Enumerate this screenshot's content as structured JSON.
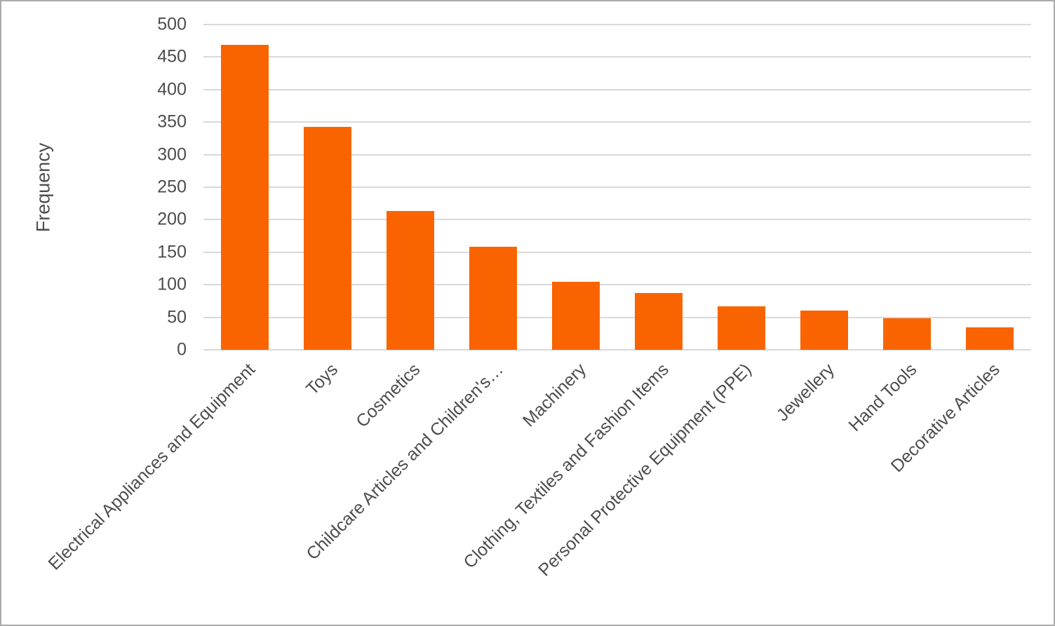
{
  "figure": {
    "background_color": "#FFFFFF",
    "border_color": "#ABABAB"
  },
  "chart_data": {
    "type": "bar",
    "title": "",
    "xlabel": "",
    "ylabel": "Frequency",
    "categories": [
      "Electrical Appliances and Equipment",
      "Toys",
      "Cosmetics",
      "Childcare Articles and Children's…",
      "Machinery",
      "Clothing, Textiles and Fashion Items",
      "Personal Protective Equipment (PPE)",
      "Jewellery",
      "Hand Tools",
      "Decorative Articles"
    ],
    "values": [
      469,
      343,
      213,
      158,
      105,
      87,
      67,
      60,
      48,
      34
    ],
    "ylim": [
      0,
      500
    ],
    "ytick_step": 50,
    "grid": "horizontal",
    "legend_position": "none",
    "bar_color": "#FA6400",
    "gridline_color": "#D9D9D9",
    "axis_text_color": "#4D4D4D",
    "x_label_rotation_deg": 45
  }
}
